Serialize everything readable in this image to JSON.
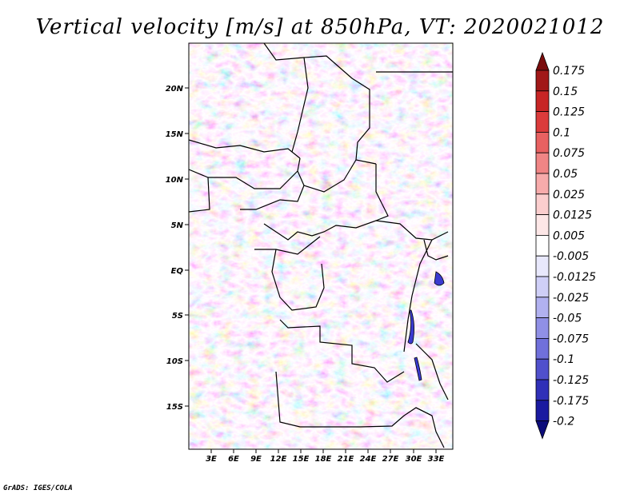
{
  "title": "Vertical velocity [m/s] at 850hPa, VT: 2020021012",
  "credit": "GrADS: IGES/COLA",
  "map": {
    "lat_ticks": [
      "20N",
      "15N",
      "10N",
      "5N",
      "EQ",
      "5S",
      "10S",
      "15S"
    ],
    "lon_ticks": [
      "3E",
      "6E",
      "9E",
      "12E",
      "15E",
      "18E",
      "21E",
      "24E",
      "27E",
      "30E",
      "33E"
    ]
  },
  "colorbar": {
    "labels": [
      "0.175",
      "0.15",
      "0.125",
      "0.1",
      "0.075",
      "0.05",
      "0.025",
      "0.0125",
      "0.005",
      "-0.005",
      "-0.0125",
      "-0.025",
      "-0.05",
      "-0.075",
      "-0.1",
      "-0.125",
      "-0.175",
      "-0.2"
    ],
    "colors": [
      "#7a0c0c",
      "#a11818",
      "#c72525",
      "#db3b3b",
      "#e86161",
      "#f08585",
      "#f7abab",
      "#fbcece",
      "#fde7e7",
      "#ffffff",
      "#e8e8fc",
      "#cfcff7",
      "#b1b1f0",
      "#9090e6",
      "#7070db",
      "#5050cc",
      "#3030b8",
      "#1a1aa0",
      "#0c0c7a"
    ]
  }
}
